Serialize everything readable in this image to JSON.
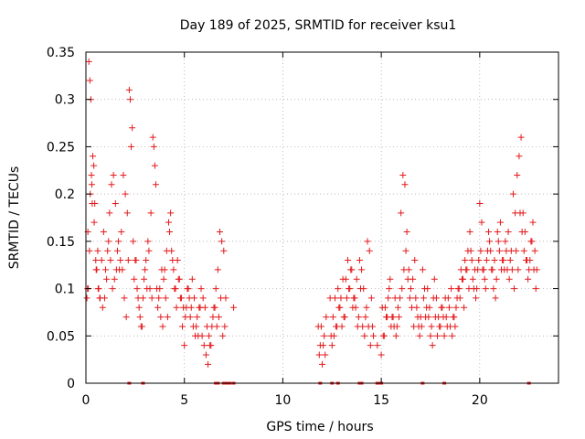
{
  "chart_data": {
    "type": "scatter",
    "title": "Day 189 of 2025, SRMTID for receiver ksu1",
    "xlabel": "GPS time / hours",
    "ylabel": "SRMTID / TECUs",
    "xlim": [
      0,
      24
    ],
    "ylim": [
      0,
      0.35
    ],
    "xticks": [
      0,
      5,
      10,
      15,
      20
    ],
    "xtick_labels": [
      "0",
      "5",
      "10",
      "15",
      "20"
    ],
    "yticks": [
      0,
      0.05,
      0.1,
      0.15,
      0.2,
      0.25,
      0.3,
      0.35
    ],
    "ytick_labels": [
      "0",
      "0.05",
      "0.1",
      "0.15",
      "0.2",
      "0.25",
      "0.3",
      "0.35"
    ],
    "grid": true,
    "marker": "+",
    "color": "#e41a1c",
    "series": [
      {
        "name": "SRMTID",
        "x": [
          0.05,
          0.1,
          0.15,
          0.2,
          0.25,
          0.3,
          0.35,
          0.4,
          0.45,
          0.5,
          0.55,
          0.6,
          0.65,
          0.7,
          0.8,
          0.9,
          1.0,
          1.1,
          1.2,
          1.3,
          1.4,
          1.5,
          1.6,
          1.7,
          1.8,
          1.9,
          2.0,
          2.1,
          2.2,
          2.25,
          2.3,
          2.35,
          2.4,
          2.5,
          2.6,
          2.7,
          2.8,
          2.9,
          3.0,
          3.1,
          3.2,
          3.3,
          3.4,
          3.45,
          3.5,
          3.55,
          3.6,
          3.7,
          3.8,
          3.9,
          4.0,
          4.1,
          4.2,
          4.3,
          4.4,
          4.5,
          4.6,
          4.7,
          4.8,
          4.9,
          5.0,
          5.1,
          5.2,
          5.3,
          5.4,
          5.5,
          5.6,
          5.7,
          5.8,
          5.9,
          6.0,
          6.1,
          6.2,
          6.3,
          6.4,
          6.5,
          6.6,
          6.7,
          6.8,
          6.9,
          7.0,
          7.1,
          7.5,
          11.8,
          11.9,
          12.0,
          12.1,
          12.2,
          12.4,
          12.5,
          12.6,
          12.7,
          12.8,
          12.9,
          13.0,
          13.1,
          13.2,
          13.3,
          13.4,
          13.5,
          13.6,
          13.7,
          13.8,
          13.9,
          14.0,
          14.1,
          14.2,
          14.3,
          14.4,
          14.5,
          14.6,
          14.8,
          15.0,
          15.1,
          15.2,
          15.3,
          15.4,
          15.5,
          15.6,
          15.7,
          15.8,
          15.9,
          16.0,
          16.1,
          16.2,
          16.3,
          16.4,
          16.5,
          16.6,
          16.7,
          16.8,
          16.9,
          17.0,
          17.1,
          17.2,
          17.3,
          17.4,
          17.5,
          17.6,
          17.7,
          17.8,
          17.9,
          18.0,
          18.1,
          18.2,
          18.3,
          18.4,
          18.5,
          18.6,
          18.7,
          18.8,
          18.9,
          19.0,
          19.1,
          19.2,
          19.3,
          19.4,
          19.5,
          19.6,
          19.7,
          19.8,
          19.9,
          20.0,
          20.1,
          20.2,
          20.3,
          20.4,
          20.5,
          20.6,
          20.7,
          20.8,
          20.9,
          21.0,
          21.1,
          21.2,
          21.3,
          21.4,
          21.5,
          21.6,
          21.7,
          21.8,
          21.9,
          22.0,
          22.1,
          22.2,
          22.3,
          22.4,
          22.5,
          22.6,
          22.7,
          22.8,
          22.9,
          0.08,
          0.12,
          0.18,
          0.22,
          0.28,
          0.32,
          0.42,
          0.52,
          0.62,
          0.72,
          0.85,
          0.95,
          1.05,
          1.15,
          1.25,
          1.35,
          1.45,
          1.55,
          1.65,
          1.75,
          1.85,
          1.95,
          2.05,
          2.15,
          2.45,
          2.55,
          2.65,
          2.75,
          2.85,
          2.95,
          3.05,
          3.15,
          3.25,
          3.35,
          3.65,
          3.75,
          3.85,
          3.95,
          4.05,
          4.15,
          4.25,
          4.35,
          4.45,
          4.55,
          4.65,
          4.75,
          4.85,
          4.95,
          5.05,
          5.15,
          5.25,
          5.35,
          5.45,
          5.55,
          5.65,
          5.75,
          5.85,
          5.95,
          6.05,
          6.15,
          6.25,
          6.35,
          6.45,
          6.55,
          6.65,
          6.75,
          6.85,
          6.95,
          7.05,
          11.85,
          11.95,
          12.05,
          12.15,
          12.45,
          12.55,
          12.65,
          12.75,
          12.85,
          12.95,
          13.05,
          13.15,
          13.25,
          13.35,
          13.45,
          13.55,
          13.65,
          13.75,
          13.85,
          13.95,
          14.05,
          14.15,
          14.25,
          14.35,
          14.45,
          14.55,
          15.05,
          15.15,
          15.25,
          15.35,
          15.45,
          15.55,
          15.65,
          15.75,
          15.85,
          15.95,
          16.05,
          16.15,
          16.25,
          16.35,
          16.45,
          16.55,
          16.65,
          16.75,
          16.85,
          16.95,
          17.05,
          17.15,
          17.25,
          17.35,
          17.45,
          17.55,
          17.65,
          17.75,
          17.85,
          17.95,
          18.05,
          18.15,
          18.25,
          18.35,
          18.45,
          18.55,
          18.65,
          18.75,
          18.85,
          18.95,
          19.05,
          19.15,
          19.25,
          19.35,
          19.45,
          19.55,
          19.65,
          19.75,
          19.85,
          19.95,
          20.05,
          20.15,
          20.25,
          20.35,
          20.45,
          20.55,
          20.65,
          20.75,
          20.85,
          20.95,
          21.05,
          21.15,
          21.25,
          21.35,
          21.45,
          21.55,
          21.65,
          21.75,
          21.85,
          21.95,
          22.05,
          22.15,
          22.25,
          22.35,
          22.45,
          22.55,
          22.65,
          22.75,
          22.85
        ],
        "y": [
          0.09,
          0.16,
          0.34,
          0.32,
          0.3,
          0.21,
          0.24,
          0.23,
          0.19,
          0.13,
          0.12,
          0.14,
          0.1,
          0.09,
          0.13,
          0.16,
          0.12,
          0.14,
          0.18,
          0.21,
          0.22,
          0.19,
          0.14,
          0.12,
          0.16,
          0.22,
          0.2,
          0.18,
          0.31,
          0.3,
          0.25,
          0.27,
          0.15,
          0.13,
          0.1,
          0.08,
          0.06,
          0.09,
          0.12,
          0.1,
          0.14,
          0.18,
          0.26,
          0.25,
          0.23,
          0.21,
          0.1,
          0.09,
          0.07,
          0.06,
          0.12,
          0.14,
          0.17,
          0.18,
          0.13,
          0.1,
          0.08,
          0.11,
          0.09,
          0.06,
          0.04,
          0.08,
          0.1,
          0.07,
          0.11,
          0.09,
          0.06,
          0.05,
          0.08,
          0.05,
          0.04,
          0.03,
          0.02,
          0.04,
          0.06,
          0.08,
          0.1,
          0.12,
          0.16,
          0.15,
          0.14,
          0.09,
          0.08,
          0.06,
          0.04,
          0.02,
          0.05,
          0.07,
          0.09,
          0.04,
          0.05,
          0.06,
          0.1,
          0.08,
          0.06,
          0.07,
          0.11,
          0.13,
          0.1,
          0.12,
          0.09,
          0.08,
          0.06,
          0.13,
          0.12,
          0.1,
          0.07,
          0.15,
          0.14,
          0.09,
          0.05,
          0.04,
          0.03,
          0.05,
          0.08,
          0.07,
          0.1,
          0.06,
          0.07,
          0.09,
          0.06,
          0.07,
          0.18,
          0.22,
          0.21,
          0.16,
          0.12,
          0.1,
          0.11,
          0.13,
          0.08,
          0.06,
          0.07,
          0.12,
          0.1,
          0.08,
          0.07,
          0.05,
          0.04,
          0.11,
          0.09,
          0.07,
          0.06,
          0.08,
          0.05,
          0.07,
          0.09,
          0.06,
          0.05,
          0.07,
          0.08,
          0.1,
          0.09,
          0.11,
          0.08,
          0.12,
          0.14,
          0.16,
          0.13,
          0.1,
          0.09,
          0.12,
          0.19,
          0.17,
          0.12,
          0.1,
          0.14,
          0.15,
          0.12,
          0.1,
          0.09,
          0.16,
          0.14,
          0.12,
          0.13,
          0.15,
          0.12,
          0.11,
          0.14,
          0.2,
          0.18,
          0.22,
          0.24,
          0.26,
          0.18,
          0.16,
          0.13,
          0.12,
          0.15,
          0.17,
          0.14,
          0.12,
          0.1,
          0.1,
          0.14,
          0.2,
          0.22,
          0.19,
          0.17,
          0.12,
          0.1,
          0.09,
          0.08,
          0.09,
          0.11,
          0.15,
          0.13,
          0.1,
          0.11,
          0.12,
          0.15,
          0.13,
          0.12,
          0.09,
          0.07,
          0.13,
          0.11,
          0.13,
          0.09,
          0.07,
          0.06,
          0.11,
          0.13,
          0.15,
          0.1,
          0.09,
          0.08,
          0.1,
          0.12,
          0.11,
          0.09,
          0.07,
          0.16,
          0.14,
          0.12,
          0.1,
          0.13,
          0.11,
          0.09,
          0.08,
          0.07,
          0.1,
          0.09,
          0.08,
          0.06,
          0.05,
          0.07,
          0.08,
          0.1,
          0.09,
          0.08,
          0.06,
          0.05,
          0.04,
          0.07,
          0.08,
          0.06,
          0.07,
          0.09,
          0.05,
          0.06,
          0.03,
          0.06,
          0.04,
          0.03,
          0.05,
          0.07,
          0.09,
          0.06,
          0.08,
          0.09,
          0.11,
          0.07,
          0.09,
          0.1,
          0.12,
          0.08,
          0.09,
          0.11,
          0.07,
          0.1,
          0.06,
          0.05,
          0.08,
          0.06,
          0.04,
          0.06,
          0.08,
          0.05,
          0.07,
          0.09,
          0.11,
          0.07,
          0.06,
          0.05,
          0.08,
          0.09,
          0.1,
          0.12,
          0.14,
          0.11,
          0.09,
          0.08,
          0.06,
          0.09,
          0.07,
          0.05,
          0.06,
          0.09,
          0.07,
          0.1,
          0.08,
          0.06,
          0.09,
          0.07,
          0.05,
          0.06,
          0.08,
          0.07,
          0.09,
          0.06,
          0.08,
          0.1,
          0.07,
          0.06,
          0.09,
          0.1,
          0.12,
          0.11,
          0.13,
          0.12,
          0.1,
          0.14,
          0.11,
          0.12,
          0.1,
          0.13,
          0.14,
          0.12,
          0.11,
          0.13,
          0.16,
          0.14,
          0.12,
          0.13,
          0.11,
          0.15,
          0.17,
          0.13,
          0.12,
          0.14,
          0.16,
          0.13,
          0.12,
          0.1,
          0.14,
          0.12,
          0.18,
          0.16,
          0.14,
          0.13,
          0.11,
          0.13,
          0.15,
          0.12,
          0.1
        ]
      }
    ],
    "zero_marks_x": [
      2.2,
      2.9,
      6.6,
      6.7,
      7.0,
      7.1,
      7.2,
      7.3,
      7.5,
      11.9,
      12.5,
      12.8,
      13.9,
      14.0,
      14.8,
      14.9,
      15.0,
      17.1,
      18.2,
      22.5
    ]
  }
}
